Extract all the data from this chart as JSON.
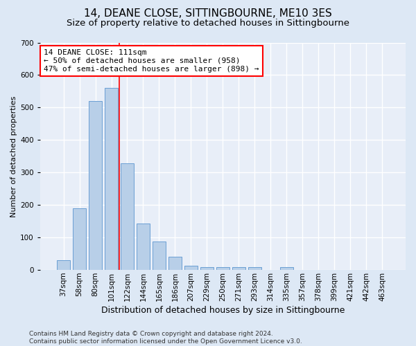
{
  "title": "14, DEANE CLOSE, SITTINGBOURNE, ME10 3ES",
  "subtitle": "Size of property relative to detached houses in Sittingbourne",
  "xlabel": "Distribution of detached houses by size in Sittingbourne",
  "ylabel": "Number of detached properties",
  "footer_line1": "Contains HM Land Registry data © Crown copyright and database right 2024.",
  "footer_line2": "Contains public sector information licensed under the Open Government Licence v3.0.",
  "categories": [
    "37sqm",
    "58sqm",
    "80sqm",
    "101sqm",
    "122sqm",
    "144sqm",
    "165sqm",
    "186sqm",
    "207sqm",
    "229sqm",
    "250sqm",
    "271sqm",
    "293sqm",
    "314sqm",
    "335sqm",
    "357sqm",
    "378sqm",
    "399sqm",
    "421sqm",
    "442sqm",
    "463sqm"
  ],
  "values": [
    30,
    190,
    520,
    560,
    328,
    143,
    88,
    40,
    13,
    9,
    9,
    9,
    9,
    0,
    9,
    0,
    0,
    0,
    0,
    0,
    0
  ],
  "bar_color": "#b8cfe8",
  "bar_edge_color": "#6a9fd4",
  "vline_x_index": 3.5,
  "vline_color": "red",
  "annotation_line1": "14 DEANE CLOSE: 111sqm",
  "annotation_line2": "← 50% of detached houses are smaller (958)",
  "annotation_line3": "47% of semi-detached houses are larger (898) →",
  "annotation_box_color": "white",
  "annotation_box_edgecolor": "red",
  "ylim": [
    0,
    700
  ],
  "yticks": [
    0,
    100,
    200,
    300,
    400,
    500,
    600,
    700
  ],
  "bg_color": "#dde8f5",
  "plot_bg_color": "#e8eef8",
  "grid_color": "white",
  "title_fontsize": 11,
  "subtitle_fontsize": 9.5,
  "ylabel_fontsize": 8,
  "xlabel_fontsize": 9,
  "tick_fontsize": 7.5,
  "annotation_fontsize": 8,
  "footer_fontsize": 6.5
}
